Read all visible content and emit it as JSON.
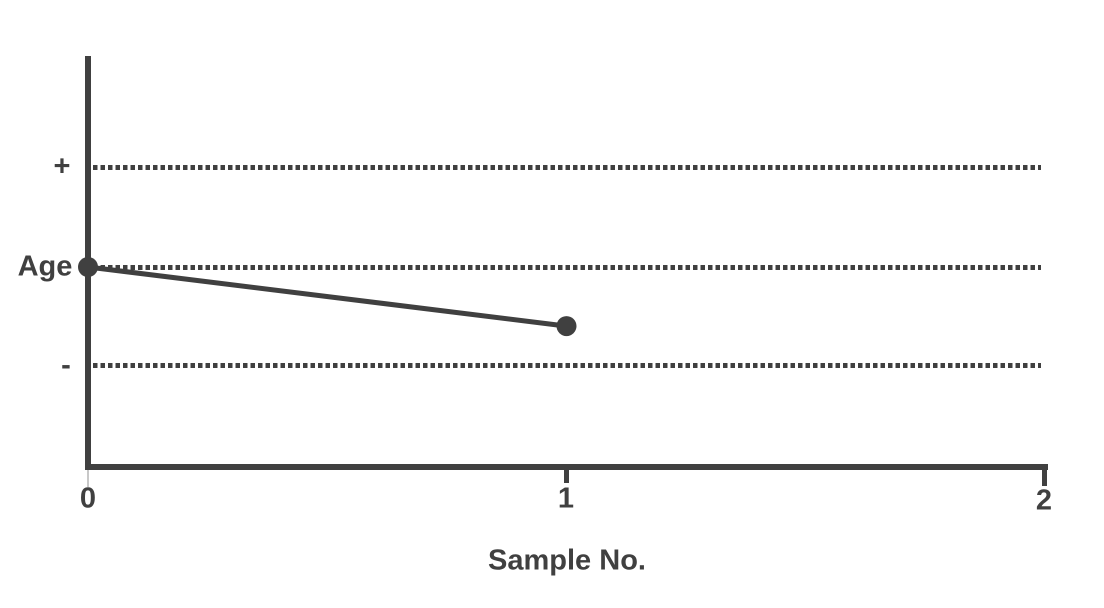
{
  "chart_data": {
    "type": "line",
    "title": "",
    "xlabel": "Sample No.",
    "ylabel": "Age",
    "x": [
      0,
      1
    ],
    "series": [
      {
        "name": "Age",
        "values": [
          0,
          -0.6
        ]
      }
    ],
    "xticks": [
      "0",
      "1",
      "2"
    ],
    "yticks": [
      {
        "label": "+",
        "value": 1
      },
      {
        "label": "Age",
        "value": 0
      },
      {
        "label": "-",
        "value": -1
      }
    ],
    "xlim": [
      0,
      2
    ],
    "ylim": [
      -2,
      2
    ],
    "grid": "horizontal-dotted",
    "legend": "none",
    "marker": "filled-circle"
  },
  "colors": {
    "ink": "#404040",
    "light_tick": "#c8c8c8",
    "background": "#ffffff"
  }
}
